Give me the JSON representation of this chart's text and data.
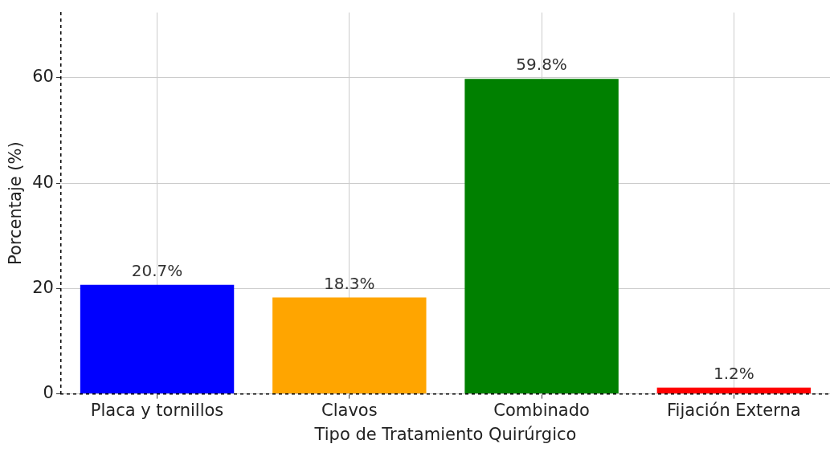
{
  "chart_data": {
    "type": "bar",
    "xlabel": "Tipo de Tratamiento Quirúrgico",
    "ylabel": "Porcentaje (%)",
    "categories": [
      "Placa y tornillos",
      "Clavos",
      "Combinado",
      "Fijación Externa"
    ],
    "values": [
      20.7,
      18.3,
      59.8,
      1.2
    ],
    "colors": [
      "#0000ff",
      "#ffa500",
      "#008000",
      "#ff0000"
    ],
    "value_labels": [
      "20.7%",
      "18.3%",
      "59.8%",
      "1.2%"
    ],
    "ylim": [
      0,
      72.4
    ],
    "yticks": [
      0,
      20,
      40,
      60
    ],
    "grid": true,
    "legend": false
  }
}
